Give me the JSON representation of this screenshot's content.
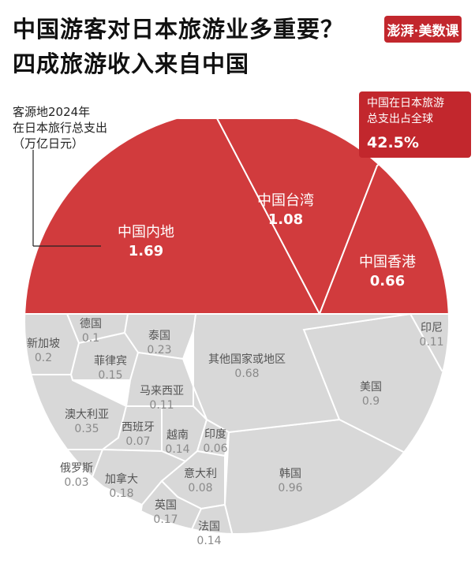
{
  "header": {
    "title_line1": "中国游客对日本旅游业多重要？",
    "title_line2": "四成旅游收入来自中国",
    "logo_text": "澎湃·美数课"
  },
  "note": {
    "line1": "客源地2024年",
    "line2": "在日本旅行总支出",
    "line3": "（万亿日元）"
  },
  "share_box": {
    "line1": "中国在日本旅游",
    "line2": "总支出占全球",
    "value": "42.5%"
  },
  "colors": {
    "china": "#d13b3d",
    "other": "#d8d8d8",
    "border": "#ffffff",
    "accent": "#c2272d"
  },
  "chart_data": {
    "type": "voronoi-pie",
    "unit": "万亿日元",
    "series": [
      {
        "label": "中国内地",
        "value": 1.69,
        "group": "china"
      },
      {
        "label": "中国台湾",
        "value": 1.08,
        "group": "china"
      },
      {
        "label": "中国香港",
        "value": 0.66,
        "group": "china"
      },
      {
        "label": "印尼",
        "value": 0.11,
        "group": "other"
      },
      {
        "label": "美国",
        "value": 0.9,
        "group": "other"
      },
      {
        "label": "韩国",
        "value": 0.96,
        "group": "other"
      },
      {
        "label": "其他国家或地区",
        "value": 0.68,
        "group": "other"
      },
      {
        "label": "德国",
        "value": 0.1,
        "group": "other"
      },
      {
        "label": "新加坡",
        "value": 0.2,
        "group": "other"
      },
      {
        "label": "泰国",
        "value": 0.23,
        "group": "other"
      },
      {
        "label": "菲律宾",
        "value": 0.15,
        "group": "other"
      },
      {
        "label": "马来西亚",
        "value": 0.11,
        "group": "other"
      },
      {
        "label": "澳大利亚",
        "value": 0.35,
        "group": "other"
      },
      {
        "label": "西班牙",
        "value": 0.07,
        "group": "other"
      },
      {
        "label": "越南",
        "value": 0.14,
        "group": "other"
      },
      {
        "label": "印度",
        "value": 0.06,
        "group": "other"
      },
      {
        "label": "俄罗斯",
        "value": 0.03,
        "group": "other"
      },
      {
        "label": "加拿大",
        "value": 0.18,
        "group": "other"
      },
      {
        "label": "意大利",
        "value": 0.08,
        "group": "other"
      },
      {
        "label": "英国",
        "value": 0.17,
        "group": "other"
      },
      {
        "label": "法国",
        "value": 0.14,
        "group": "other"
      }
    ]
  }
}
